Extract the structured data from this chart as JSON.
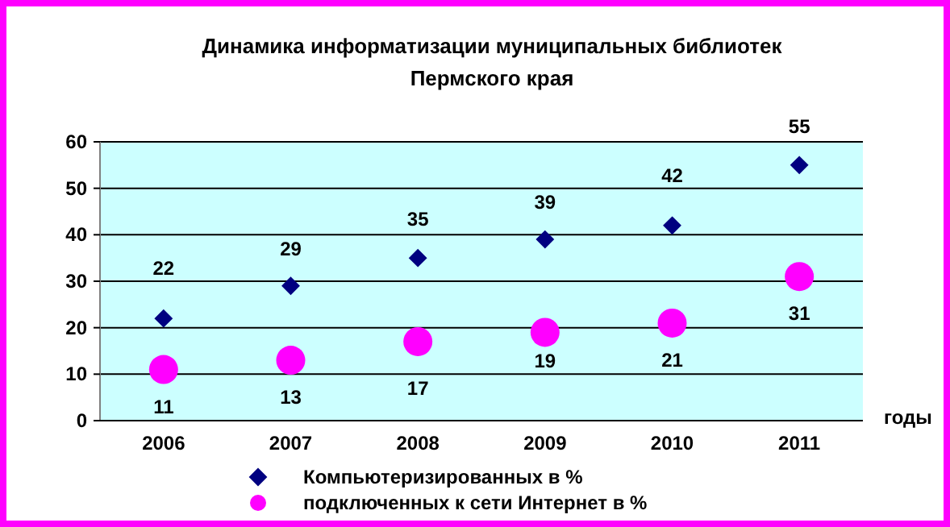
{
  "chart_data": {
    "type": "scatter",
    "title": "Динамика информатизации муниципальных библиотек\nПермского края",
    "xlabel": "годы",
    "categories": [
      "2006",
      "2007",
      "2008",
      "2009",
      "2010",
      "2011"
    ],
    "series": [
      {
        "name": "Компьютеризированных в %",
        "color": "#000080",
        "marker": "diamond",
        "values": [
          22,
          29,
          35,
          39,
          42,
          55
        ]
      },
      {
        "name": "подключенных к сети Интернет в %",
        "color": "#ff00ff",
        "marker": "circle",
        "values": [
          11,
          13,
          17,
          19,
          21,
          31
        ]
      }
    ],
    "ylim": [
      0,
      60
    ],
    "yticks": [
      0,
      10,
      20,
      30,
      40,
      50,
      60
    ],
    "grid": "y",
    "legend": "bottom",
    "data_labels": true
  }
}
